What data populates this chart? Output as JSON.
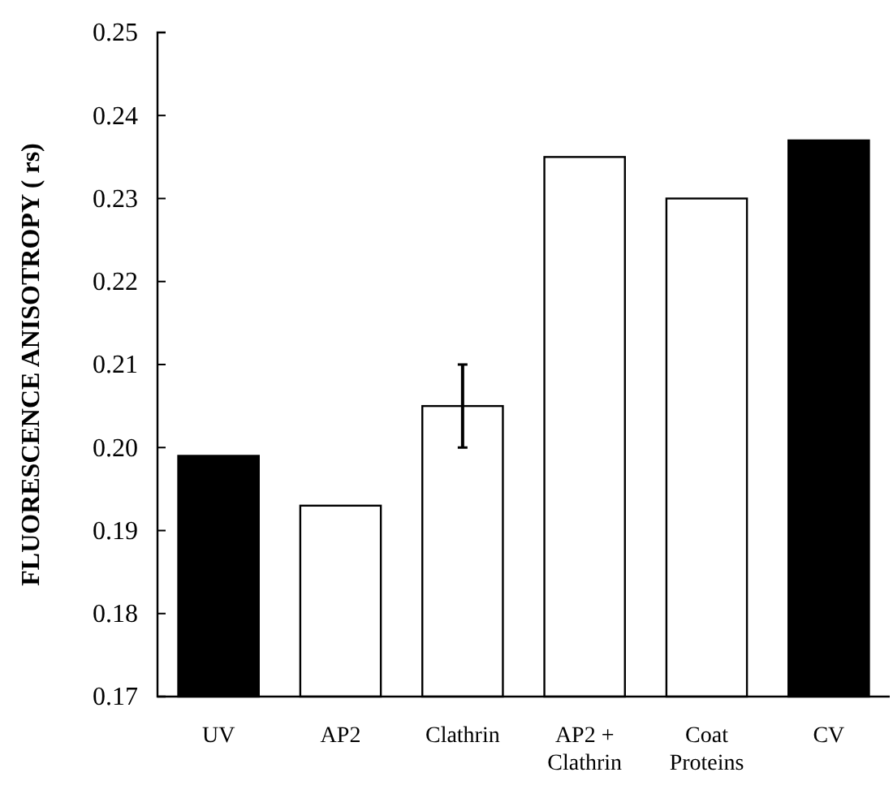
{
  "chart_data": {
    "type": "bar",
    "ylabel": "FLUORESCENCE ANISOTROPY ( rs)",
    "categories": [
      "UV",
      "AP2",
      "Clathrin",
      "AP2 + Clathrin",
      "Coat Proteins",
      "CV"
    ],
    "values": [
      0.199,
      0.193,
      0.205,
      0.235,
      0.23,
      0.237
    ],
    "colors": [
      "#000000",
      "#ffffff",
      "#ffffff",
      "#ffffff",
      "#ffffff",
      "#000000"
    ],
    "errors": [
      null,
      null,
      0.005,
      null,
      null,
      null
    ],
    "ylim": [
      0.17,
      0.25
    ],
    "yticks": [
      {
        "value": 0.17,
        "label": "0.17"
      },
      {
        "value": 0.18,
        "label": "0.18"
      },
      {
        "value": 0.19,
        "label": "0.19"
      },
      {
        "value": 0.2,
        "label": "0.20"
      },
      {
        "value": 0.21,
        "label": "0.21"
      },
      {
        "value": 0.22,
        "label": "0.22"
      },
      {
        "value": 0.23,
        "label": "0.23"
      },
      {
        "value": 0.24,
        "label": "0.24"
      },
      {
        "value": 0.25,
        "label": "0.25"
      }
    ],
    "grid": false
  }
}
